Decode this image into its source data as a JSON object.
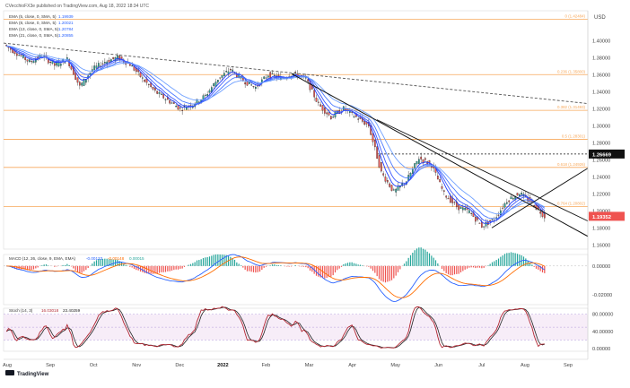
{
  "header": {
    "published": "CVecchioFX3e published on TradingView.com, Aug 18, 2022 18:34 UTC",
    "currency": "USD"
  },
  "legend": [
    {
      "label": "EMA (5, close, 0, SMA, 5)",
      "value": "1.19939",
      "color": "#2962ff"
    },
    {
      "label": "EMA (8, close, 0, SMA, 5)",
      "value": "1.20021",
      "color": "#2962ff"
    },
    {
      "label": "EMA (13, close, 0, SMA, 5)",
      "value": "1.20784",
      "color": "#2962ff"
    },
    {
      "label": "EMA (21, close, 0, SMA, 5)",
      "value": "1.20855",
      "color": "#2962ff"
    }
  ],
  "watermark": "TradingView",
  "colors": {
    "bull": "#26a69a",
    "bear": "#ef5350",
    "fib": "#f7a85a",
    "ema": "#2962ff",
    "macd": "#2962ff",
    "signal": "#ff6d00",
    "stoch_k": "#b22833",
    "stoch_d": "#222222",
    "price_tag": "#ef5350"
  },
  "chart_data": [
    {
      "type": "candlestick",
      "pane": "price",
      "title": "",
      "x": {
        "ticks": [
          "Aug",
          "Sep",
          "Oct",
          "Nov",
          "Dec",
          "2022",
          "Feb",
          "Mar",
          "Apr",
          "May",
          "Jun",
          "Jul",
          "Aug",
          "Sep"
        ]
      },
      "y": {
        "ticks": [
          "1.40000",
          "1.38000",
          "1.36000",
          "1.34000",
          "1.32000",
          "1.30000",
          "1.28000",
          "1.26000",
          "1.24000",
          "1.22000",
          "1.20000",
          "1.18000",
          "1.16000"
        ],
        "range": [
          1.155,
          1.435
        ]
      },
      "close_path": [
        [
          "Aug",
          1.395
        ],
        [
          "Aug",
          1.385
        ],
        [
          "Sep",
          1.375
        ],
        [
          "Sep",
          1.382
        ],
        [
          "Sep",
          1.371
        ],
        [
          "Sep",
          1.378
        ],
        [
          "Oct",
          1.346
        ],
        [
          "Oct",
          1.366
        ],
        [
          "Oct",
          1.375
        ],
        [
          "Nov",
          1.38
        ],
        [
          "Nov",
          1.372
        ],
        [
          "Nov",
          1.355
        ],
        [
          "Nov",
          1.34
        ],
        [
          "Dec",
          1.33
        ],
        [
          "Dec",
          1.32
        ],
        [
          "Dec",
          1.325
        ],
        [
          "2022",
          1.335
        ],
        [
          "2022",
          1.355
        ],
        [
          "2022",
          1.366
        ],
        [
          "Feb",
          1.353
        ],
        [
          "Feb",
          1.345
        ],
        [
          "Feb",
          1.36
        ],
        [
          "Feb",
          1.356
        ],
        [
          "Feb",
          1.361
        ],
        [
          "Mar",
          1.355
        ],
        [
          "Mar",
          1.325
        ],
        [
          "Mar",
          1.31
        ],
        [
          "Apr",
          1.32
        ],
        [
          "Apr",
          1.31
        ],
        [
          "Apr",
          1.3
        ],
        [
          "May",
          1.245
        ],
        [
          "May",
          1.222
        ],
        [
          "May",
          1.235
        ],
        [
          "May",
          1.262
        ],
        [
          "Jun",
          1.254
        ],
        [
          "Jun",
          1.22
        ],
        [
          "Jun",
          1.205
        ],
        [
          "Jul",
          1.199
        ],
        [
          "Jul",
          1.182
        ],
        [
          "Jul",
          1.19
        ],
        [
          "Aug",
          1.212
        ],
        [
          "Aug",
          1.221
        ],
        [
          "Aug",
          1.209
        ],
        [
          "Aug",
          1.19352
        ]
      ],
      "last_price": "1.19352",
      "price_labels": [
        {
          "value": 1.425,
          "text": "0 (1.42484)"
        },
        {
          "value": 1.36,
          "text": "0.236 (1.35800)"
        },
        {
          "value": 1.318,
          "text": "0.382 (1.31493)"
        },
        {
          "value": 1.284,
          "text": "0.5 (1.28301)"
        },
        {
          "value": 1.251,
          "text": "0.618 (1.24926)"
        },
        {
          "value": 1.205,
          "text": "0.764 (1.20802)"
        }
      ],
      "horizontal_lines": [
        {
          "value": 1.2667,
          "text": "1.26669",
          "style": "dotted"
        }
      ]
    },
    {
      "type": "line",
      "pane": "macd",
      "title": "MACD (12, 26, close, 9, EMA, EMA)",
      "values": [
        "-0.00133",
        "-0.00148",
        "0.00015"
      ],
      "y": {
        "ticks": [
          "0.00000",
          "-0.02000"
        ],
        "range": [
          -0.027,
          0.008
        ]
      },
      "series": [
        {
          "name": "MACD",
          "color": "#2962ff"
        },
        {
          "name": "Signal",
          "color": "#ff6d00"
        },
        {
          "name": "Histogram",
          "color": "#26a69a"
        }
      ]
    },
    {
      "type": "line",
      "pane": "stochastic",
      "title": "Stoch (14, 3)",
      "values": [
        "16.03018",
        "23.40259"
      ],
      "y": {
        "ticks": [
          "80.00000",
          "40.00000",
          "0.00000"
        ],
        "range": [
          -6,
          94
        ],
        "band": [
          20,
          80
        ]
      },
      "series": [
        {
          "name": "%K",
          "color": "#b22833"
        },
        {
          "name": "%D",
          "color": "#222222"
        }
      ]
    }
  ]
}
